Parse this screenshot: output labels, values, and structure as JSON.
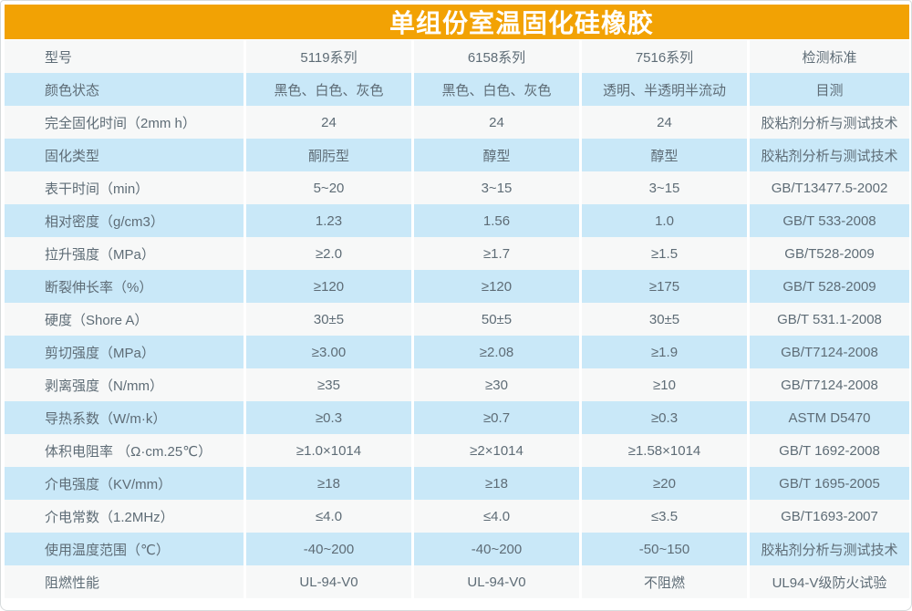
{
  "header": {
    "title": "单组份室温固化硅橡胶"
  },
  "table": {
    "columns": [
      "型号",
      "5119系列",
      "6158系列",
      "7516系列",
      "检测标准"
    ],
    "rows": [
      [
        "颜色状态",
        "黑色、白色、灰色",
        "黑色、白色、灰色",
        "透明、半透明半流动",
        "目测"
      ],
      [
        "完全固化时间（2mm h）",
        "24",
        "24",
        "24",
        "胶粘剂分析与测试技术"
      ],
      [
        "固化类型",
        "酮肟型",
        "醇型",
        "醇型",
        "胶粘剂分析与测试技术"
      ],
      [
        "表干时间（min）",
        "5~20",
        "3~15",
        "3~15",
        "GB/T13477.5-2002"
      ],
      [
        "相对密度（g/cm3）",
        "1.23",
        "1.56",
        "1.0",
        "GB/T 533-2008"
      ],
      [
        "拉升强度（MPa）",
        "≥2.0",
        "≥1.7",
        "≥1.5",
        "GB/T528-2009"
      ],
      [
        "断裂伸长率（%）",
        "≥120",
        "≥120",
        "≥175",
        "GB/T 528-2009"
      ],
      [
        "硬度（Shore A）",
        "30±5",
        "50±5",
        "30±5",
        "GB/T 531.1-2008"
      ],
      [
        "剪切强度（MPa）",
        "≥3.00",
        "≥2.08",
        "≥1.9",
        "GB/T7124-2008"
      ],
      [
        "剥离强度（N/mm）",
        "≥35",
        "≥30",
        "≥10",
        "GB/T7124-2008"
      ],
      [
        "导热系数（W/m·k）",
        "≥0.3",
        "≥0.7",
        "≥0.3",
        "ASTM D5470"
      ],
      [
        "体积电阻率 （Ω·cm.25℃）",
        "≥1.0×1014",
        "≥2×1014",
        "≥1.58×1014",
        "GB/T 1692-2008"
      ],
      [
        "介电强度（KV/mm）",
        "≥18",
        "≥18",
        "≥20",
        "GB/T 1695-2005"
      ],
      [
        "介电常数（1.2MHz）",
        "≤4.0",
        "≤4.0",
        "≤3.5",
        "GB/T1693-2007"
      ],
      [
        "使用温度范围（℃）",
        "-40~200",
        "-40~200",
        "-50~150",
        "胶粘剂分析与测试技术"
      ],
      [
        "阻燃性能",
        "UL-94-V0",
        "UL-94-V0",
        "不阻燃",
        "UL94-V级防火试验"
      ]
    ]
  },
  "colors": {
    "header_bg": "#F2A204",
    "row_blue": "#C9E8F8",
    "row_light": "#F7F8F8",
    "text_color": "#5E6C76",
    "title_text": "#FFFFFF",
    "card_border": "#D7DBDC"
  }
}
